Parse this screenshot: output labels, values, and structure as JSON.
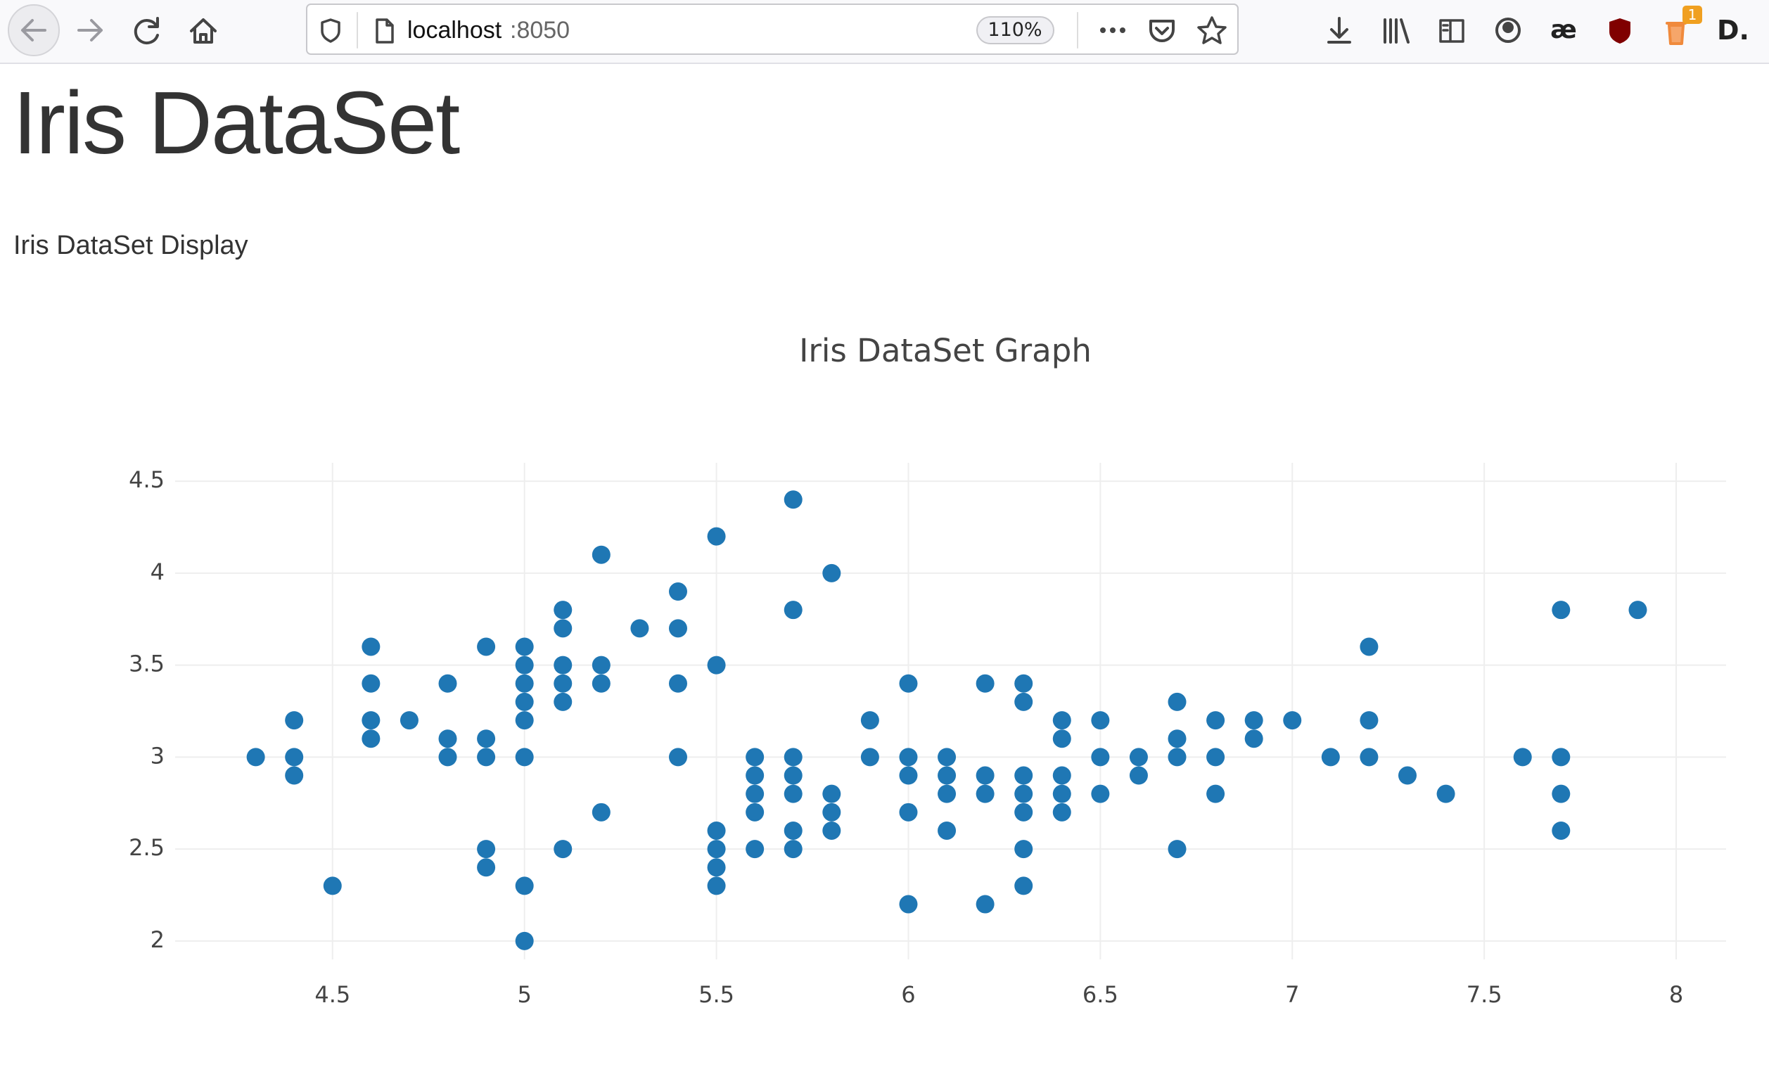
{
  "browser": {
    "url_host": "localhost",
    "url_port": ":8050",
    "zoom": "110%",
    "ae_icon": "æ",
    "d_icon": "D.",
    "notification_badge": "1"
  },
  "page": {
    "heading": "Iris DataSet",
    "paragraph": "Iris DataSet Display"
  },
  "chart_data": {
    "type": "scatter",
    "title": "Iris DataSet Graph",
    "color": "#1f77b4",
    "x": [
      4.3,
      4.4,
      4.4,
      4.4,
      4.5,
      4.6,
      4.6,
      4.6,
      4.6,
      4.7,
      4.8,
      4.8,
      4.8,
      4.9,
      4.9,
      4.9,
      4.9,
      4.9,
      5,
      5,
      5,
      5,
      5,
      5,
      5,
      5,
      5.1,
      5.1,
      5.1,
      5.1,
      5.1,
      5.1,
      5.2,
      5.2,
      5.2,
      5.2,
      5.3,
      5.4,
      5.4,
      5.4,
      5.4,
      5.5,
      5.5,
      5.5,
      5.5,
      5.5,
      5.5,
      5.6,
      5.6,
      5.6,
      5.6,
      5.6,
      5.7,
      5.7,
      5.7,
      5.7,
      5.7,
      5.7,
      5.7,
      5.8,
      5.8,
      5.8,
      5.8,
      5.9,
      5.9,
      6,
      6,
      6,
      6,
      6,
      6.1,
      6.1,
      6.1,
      6.1,
      6.2,
      6.2,
      6.2,
      6.2,
      6.3,
      6.3,
      6.3,
      6.3,
      6.3,
      6.3,
      6.3,
      6.4,
      6.4,
      6.4,
      6.4,
      6.4,
      6.5,
      6.5,
      6.5,
      6.6,
      6.6,
      6.7,
      6.7,
      6.7,
      6.7,
      6.8,
      6.8,
      6.8,
      6.9,
      6.9,
      7,
      7.1,
      7.2,
      7.2,
      7.2,
      7.3,
      7.4,
      7.6,
      7.7,
      7.7,
      7.7,
      7.7,
      7.9
    ],
    "values": [
      3,
      3.2,
      3,
      2.9,
      2.3,
      3.6,
      3.4,
      3.2,
      3.1,
      3.2,
      3.4,
      3.1,
      3,
      3.6,
      3.1,
      3,
      2.5,
      2.4,
      3.6,
      3.5,
      3.4,
      3.3,
      3.2,
      3,
      2.3,
      2,
      3.8,
      3.7,
      3.5,
      3.4,
      3.3,
      2.5,
      4.1,
      3.5,
      3.4,
      2.7,
      3.7,
      3.9,
      3.7,
      3.4,
      3,
      4.2,
      3.5,
      2.6,
      2.5,
      2.4,
      2.3,
      3,
      2.9,
      2.8,
      2.7,
      2.5,
      4.4,
      3.8,
      3,
      2.9,
      2.8,
      2.6,
      2.5,
      4,
      2.8,
      2.7,
      2.6,
      3.2,
      3,
      3.4,
      3,
      2.9,
      2.7,
      2.2,
      3,
      2.9,
      2.8,
      2.6,
      3.4,
      2.9,
      2.8,
      2.2,
      3.4,
      3.3,
      2.9,
      2.8,
      2.7,
      2.5,
      2.3,
      3.2,
      3.1,
      2.9,
      2.8,
      2.7,
      3.2,
      3,
      2.8,
      3,
      2.9,
      3.3,
      3.1,
      3,
      2.5,
      3.2,
      3,
      2.8,
      3.2,
      3.1,
      3.2,
      3,
      3.6,
      3.2,
      3,
      2.9,
      2.8,
      3,
      3.8,
      3,
      2.8,
      2.6,
      3.8
    ],
    "xlim": [
      4.09,
      8.13
    ],
    "ylim": [
      1.9,
      4.6
    ],
    "xticks": [
      4.5,
      5,
      5.5,
      6,
      6.5,
      7,
      7.5,
      8
    ],
    "yticks": [
      2,
      2.5,
      3,
      3.5,
      4,
      4.5
    ],
    "grid": true
  }
}
